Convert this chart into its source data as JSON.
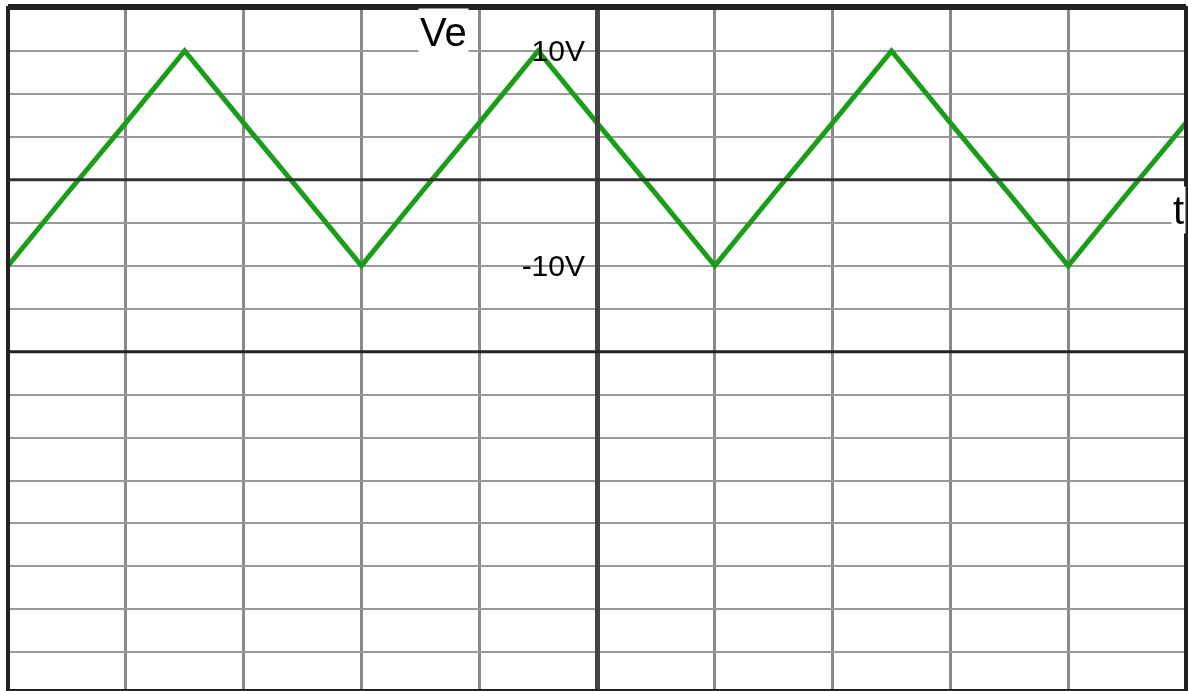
{
  "chart_data": {
    "type": "line",
    "xlabel": "t",
    "ylabel": "Ve",
    "categories": [
      null,
      null,
      null,
      null,
      null,
      null,
      null,
      null,
      null,
      null,
      null,
      null,
      null,
      null,
      null,
      null,
      null,
      null,
      null,
      null,
      null
    ],
    "series": [
      {
        "color": "#1a9e1a",
        "values": [
          -10,
          -3.3,
          3.3,
          10,
          3.3,
          -3.3,
          -10,
          -3.3,
          3.3,
          10,
          3.3,
          -3.3,
          -10,
          -3.3,
          3.3,
          10,
          3.3,
          -3.3,
          -10,
          -3.3,
          3.3
        ]
      }
    ],
    "ylim": [
      -49.6,
      14
    ],
    "yticks": [
      {
        "value": 14,
        "label": null
      },
      {
        "value": 10,
        "label": "10V"
      },
      {
        "value": 6,
        "label": null
      },
      {
        "value": 2,
        "label": null
      },
      {
        "value": -2,
        "label": null
      },
      {
        "value": -6,
        "label": null
      },
      {
        "value": -10,
        "label": "-10V"
      },
      {
        "value": -14,
        "label": null
      },
      {
        "value": -18,
        "label": null
      },
      {
        "value": -22,
        "label": null
      },
      {
        "value": -26,
        "label": null
      },
      {
        "value": -30,
        "label": null
      },
      {
        "value": -34,
        "label": null
      },
      {
        "value": -38,
        "label": null
      },
      {
        "value": -42,
        "label": null
      },
      {
        "value": -46,
        "label": null
      }
    ],
    "ref_lines": [
      {
        "axis": "y",
        "value": -2,
        "color": "#333333"
      },
      {
        "axis": "y",
        "value": -18,
        "color": "#222222"
      }
    ],
    "grid": true,
    "marker": "none",
    "line_style": "solid"
  }
}
